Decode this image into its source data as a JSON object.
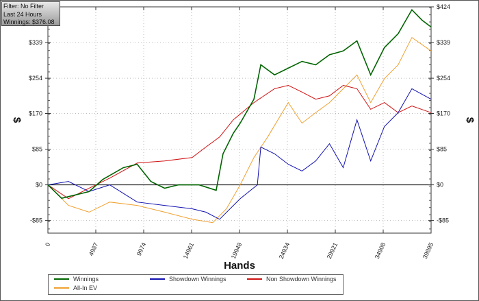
{
  "info": {
    "filter": "Filter: No Filter",
    "period": "Last  24 Hours",
    "winnings": "Winnings: $376.08"
  },
  "chart_data": {
    "type": "line",
    "xlabel": "Hands",
    "ylabel": "$",
    "xlim": [
      0,
      39895
    ],
    "ylim": [
      -115,
      424
    ],
    "x_ticks": [
      "0",
      "4987",
      "9974",
      "14961",
      "19948",
      "24934",
      "29921",
      "34908",
      "39895"
    ],
    "y_ticks": [
      {
        "value": 424,
        "label": "$424"
      },
      {
        "value": 339,
        "label": "$339"
      },
      {
        "value": 254,
        "label": "$254"
      },
      {
        "value": 170,
        "label": "$170"
      },
      {
        "value": 85,
        "label": "$85"
      },
      {
        "value": 0,
        "label": "$0"
      },
      {
        "value": -85,
        "label": "-$85"
      }
    ],
    "grid": true,
    "legend_position": "bottom",
    "series": [
      {
        "name": "Winnings",
        "color": "#006400",
        "points": [
          [
            0,
            0
          ],
          [
            1430,
            -32
          ],
          [
            4290,
            -16
          ],
          [
            5720,
            13
          ],
          [
            7865,
            41
          ],
          [
            9295,
            49
          ],
          [
            10725,
            8
          ],
          [
            12155,
            -8
          ],
          [
            13585,
            0
          ],
          [
            15730,
            0
          ],
          [
            17518,
            -13
          ],
          [
            18233,
            74
          ],
          [
            19305,
            123
          ],
          [
            20020,
            147
          ],
          [
            21450,
            204
          ],
          [
            22165,
            286
          ],
          [
            23595,
            262
          ],
          [
            25025,
            278
          ],
          [
            26455,
            294
          ],
          [
            27885,
            286
          ],
          [
            29315,
            310
          ],
          [
            30745,
            319
          ],
          [
            32175,
            343
          ],
          [
            33605,
            262
          ],
          [
            35035,
            327
          ],
          [
            36465,
            360
          ],
          [
            37895,
            417
          ],
          [
            38968,
            392
          ],
          [
            39895,
            376
          ]
        ]
      },
      {
        "name": "Showdown Winnings",
        "color": "#1010b0",
        "points": [
          [
            0,
            0
          ],
          [
            2145,
            8
          ],
          [
            4290,
            -16
          ],
          [
            6435,
            0
          ],
          [
            9295,
            -41
          ],
          [
            12155,
            -49
          ],
          [
            15015,
            -57
          ],
          [
            16445,
            -65
          ],
          [
            17875,
            -82
          ],
          [
            20020,
            -33
          ],
          [
            21808,
            0
          ],
          [
            22165,
            90
          ],
          [
            23595,
            74
          ],
          [
            25025,
            49
          ],
          [
            26455,
            33
          ],
          [
            27885,
            57
          ],
          [
            29315,
            98
          ],
          [
            30745,
            41
          ],
          [
            32175,
            155
          ],
          [
            33605,
            57
          ],
          [
            35035,
            139
          ],
          [
            36465,
            172
          ],
          [
            37895,
            229
          ],
          [
            39895,
            204
          ]
        ]
      },
      {
        "name": "Non Showdown Winnings",
        "color": "#d01010",
        "points": [
          [
            0,
            0
          ],
          [
            2145,
            -33
          ],
          [
            4290,
            -8
          ],
          [
            6435,
            16
          ],
          [
            9295,
            52
          ],
          [
            12155,
            57
          ],
          [
            15015,
            65
          ],
          [
            16445,
            90
          ],
          [
            17875,
            114
          ],
          [
            19305,
            155
          ],
          [
            21450,
            196
          ],
          [
            23595,
            229
          ],
          [
            25025,
            237
          ],
          [
            26455,
            221
          ],
          [
            27885,
            204
          ],
          [
            29315,
            212
          ],
          [
            30745,
            237
          ],
          [
            32175,
            229
          ],
          [
            33605,
            180
          ],
          [
            35035,
            196
          ],
          [
            36465,
            172
          ],
          [
            37895,
            188
          ],
          [
            39895,
            172
          ]
        ]
      },
      {
        "name": "All-In EV",
        "color": "#f0a030",
        "points": [
          [
            0,
            0
          ],
          [
            2145,
            -49
          ],
          [
            4290,
            -65
          ],
          [
            6435,
            -41
          ],
          [
            9295,
            -49
          ],
          [
            12155,
            -65
          ],
          [
            15015,
            -82
          ],
          [
            17160,
            -90
          ],
          [
            18590,
            -57
          ],
          [
            20020,
            0
          ],
          [
            21450,
            65
          ],
          [
            22880,
            114
          ],
          [
            25025,
            196
          ],
          [
            26455,
            147
          ],
          [
            27885,
            172
          ],
          [
            29315,
            196
          ],
          [
            30745,
            229
          ],
          [
            32175,
            262
          ],
          [
            33605,
            196
          ],
          [
            35035,
            253
          ],
          [
            36465,
            286
          ],
          [
            37895,
            351
          ],
          [
            39895,
            319
          ]
        ]
      }
    ]
  }
}
